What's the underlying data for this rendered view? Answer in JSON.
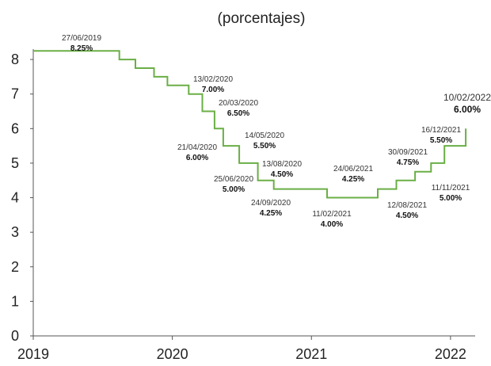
{
  "chart_data": {
    "type": "line",
    "subtitle": "(porcentajes)",
    "title": "",
    "xlabel": "",
    "ylabel": "",
    "xlim": [
      2019.0,
      2022.2
    ],
    "ylim": [
      0,
      8.3
    ],
    "x_ticks": [
      {
        "value": 2019,
        "label": "2019"
      },
      {
        "value": 2020,
        "label": "2020"
      },
      {
        "value": 2021,
        "label": "2021"
      },
      {
        "value": 2022,
        "label": "2022"
      }
    ],
    "y_ticks": [
      0,
      1,
      2,
      3,
      4,
      5,
      6,
      7,
      8
    ],
    "grid": false,
    "step": true,
    "line_color": "#6aaf46",
    "series": [
      {
        "points": [
          {
            "x": "2019-01-01",
            "y": 8.25
          },
          {
            "x": "2019-08-15",
            "y": 8.0
          },
          {
            "x": "2019-09-26",
            "y": 7.75
          },
          {
            "x": "2019-11-14",
            "y": 7.5
          },
          {
            "x": "2019-12-19",
            "y": 7.25
          },
          {
            "x": "2020-02-13",
            "y": 7.0
          },
          {
            "x": "2020-03-20",
            "y": 6.5
          },
          {
            "x": "2020-04-21",
            "y": 6.0
          },
          {
            "x": "2020-05-14",
            "y": 5.5
          },
          {
            "x": "2020-06-25",
            "y": 5.0
          },
          {
            "x": "2020-08-13",
            "y": 4.5
          },
          {
            "x": "2020-09-24",
            "y": 4.25
          },
          {
            "x": "2021-02-11",
            "y": 4.0
          },
          {
            "x": "2021-06-24",
            "y": 4.25
          },
          {
            "x": "2021-08-12",
            "y": 4.5
          },
          {
            "x": "2021-09-30",
            "y": 4.75
          },
          {
            "x": "2021-11-11",
            "y": 5.0
          },
          {
            "x": "2021-12-16",
            "y": 5.5
          },
          {
            "x": "2022-02-10",
            "y": 6.0
          }
        ]
      }
    ],
    "annotations": [
      {
        "date": "27/06/2019",
        "value": "8.25%"
      },
      {
        "date": "13/02/2020",
        "value": "7.00%"
      },
      {
        "date": "20/03/2020",
        "value": "6.50%"
      },
      {
        "date": "14/05/2020",
        "value": "5.50%"
      },
      {
        "date": "21/04/2020",
        "value": "6.00%"
      },
      {
        "date": "13/08/2020",
        "value": "4.50%"
      },
      {
        "date": "25/06/2020",
        "value": "5.00%"
      },
      {
        "date": "24/09/2020",
        "value": "4.25%"
      },
      {
        "date": "24/06/2021",
        "value": "4.25%"
      },
      {
        "date": "11/02/2021",
        "value": "4.00%"
      },
      {
        "date": "30/09/2021",
        "value": "4.75%"
      },
      {
        "date": "12/08/2021",
        "value": "4.50%"
      },
      {
        "date": "16/12/2021",
        "value": "5.50%"
      },
      {
        "date": "11/11/2021",
        "value": "5.00%"
      },
      {
        "date": "10/02/2022",
        "value": "6.00%"
      }
    ]
  }
}
